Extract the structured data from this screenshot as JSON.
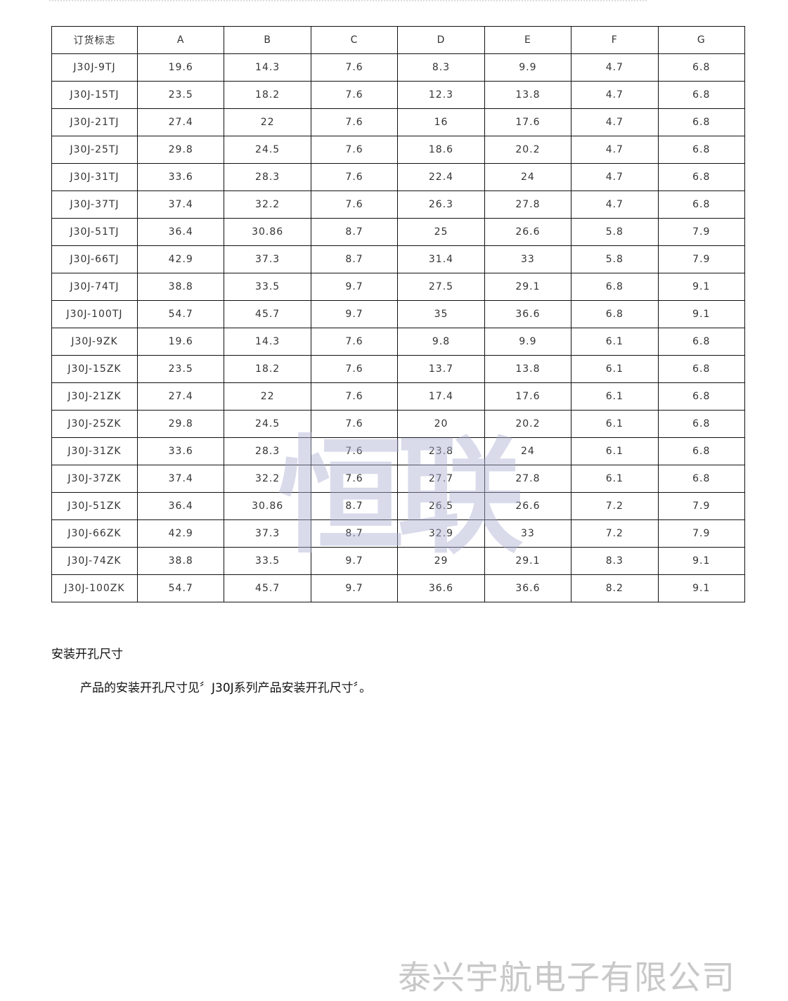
{
  "table": {
    "headers": [
      "订货标志",
      "A",
      "B",
      "C",
      "D",
      "E",
      "F",
      "G"
    ],
    "rows": [
      [
        "J30J-9TJ",
        "19.6",
        "14.3",
        "7.6",
        "8.3",
        "9.9",
        "4.7",
        "6.8"
      ],
      [
        "J30J-15TJ",
        "23.5",
        "18.2",
        "7.6",
        "12.3",
        "13.8",
        "4.7",
        "6.8"
      ],
      [
        "J30J-21TJ",
        "27.4",
        "22",
        "7.6",
        "16",
        "17.6",
        "4.7",
        "6.8"
      ],
      [
        "J30J-25TJ",
        "29.8",
        "24.5",
        "7.6",
        "18.6",
        "20.2",
        "4.7",
        "6.8"
      ],
      [
        "J30J-31TJ",
        "33.6",
        "28.3",
        "7.6",
        "22.4",
        "24",
        "4.7",
        "6.8"
      ],
      [
        "J30J-37TJ",
        "37.4",
        "32.2",
        "7.6",
        "26.3",
        "27.8",
        "4.7",
        "6.8"
      ],
      [
        "J30J-51TJ",
        "36.4",
        "30.86",
        "8.7",
        "25",
        "26.6",
        "5.8",
        "7.9"
      ],
      [
        "J30J-66TJ",
        "42.9",
        "37.3",
        "8.7",
        "31.4",
        "33",
        "5.8",
        "7.9"
      ],
      [
        "J30J-74TJ",
        "38.8",
        "33.5",
        "9.7",
        "27.5",
        "29.1",
        "6.8",
        "9.1"
      ],
      [
        "J30J-100TJ",
        "54.7",
        "45.7",
        "9.7",
        "35",
        "36.6",
        "6.8",
        "9.1"
      ],
      [
        "J30J-9ZK",
        "19.6",
        "14.3",
        "7.6",
        "9.8",
        "9.9",
        "6.1",
        "6.8"
      ],
      [
        "J30J-15ZK",
        "23.5",
        "18.2",
        "7.6",
        "13.7",
        "13.8",
        "6.1",
        "6.8"
      ],
      [
        "J30J-21ZK",
        "27.4",
        "22",
        "7.6",
        "17.4",
        "17.6",
        "6.1",
        "6.8"
      ],
      [
        "J30J-25ZK",
        "29.8",
        "24.5",
        "7.6",
        "20",
        "20.2",
        "6.1",
        "6.8"
      ],
      [
        "J30J-31ZK",
        "33.6",
        "28.3",
        "7.6",
        "23.8",
        "24",
        "6.1",
        "6.8"
      ],
      [
        "J30J-37ZK",
        "37.4",
        "32.2",
        "7.6",
        "27.7",
        "27.8",
        "6.1",
        "6.8"
      ],
      [
        "J30J-51ZK",
        "36.4",
        "30.86",
        "8.7",
        "26.5",
        "26.6",
        "7.2",
        "7.9"
      ],
      [
        "J30J-66ZK",
        "42.9",
        "37.3",
        "8.7",
        "32.9",
        "33",
        "7.2",
        "7.9"
      ],
      [
        "J30J-74ZK",
        "38.8",
        "33.5",
        "9.7",
        "29",
        "29.1",
        "8.3",
        "9.1"
      ],
      [
        "J30J-100ZK",
        "54.7",
        "45.7",
        "9.7",
        "36.6",
        "36.6",
        "8.2",
        "9.1"
      ]
    ]
  },
  "section_title": "安装开孔尺寸",
  "paragraph": "产品的安装开孔尺寸见〞J30J系列产品安装开孔尺寸〞。",
  "watermark": "恒联",
  "footer": "泰兴宇航电子有限公司"
}
